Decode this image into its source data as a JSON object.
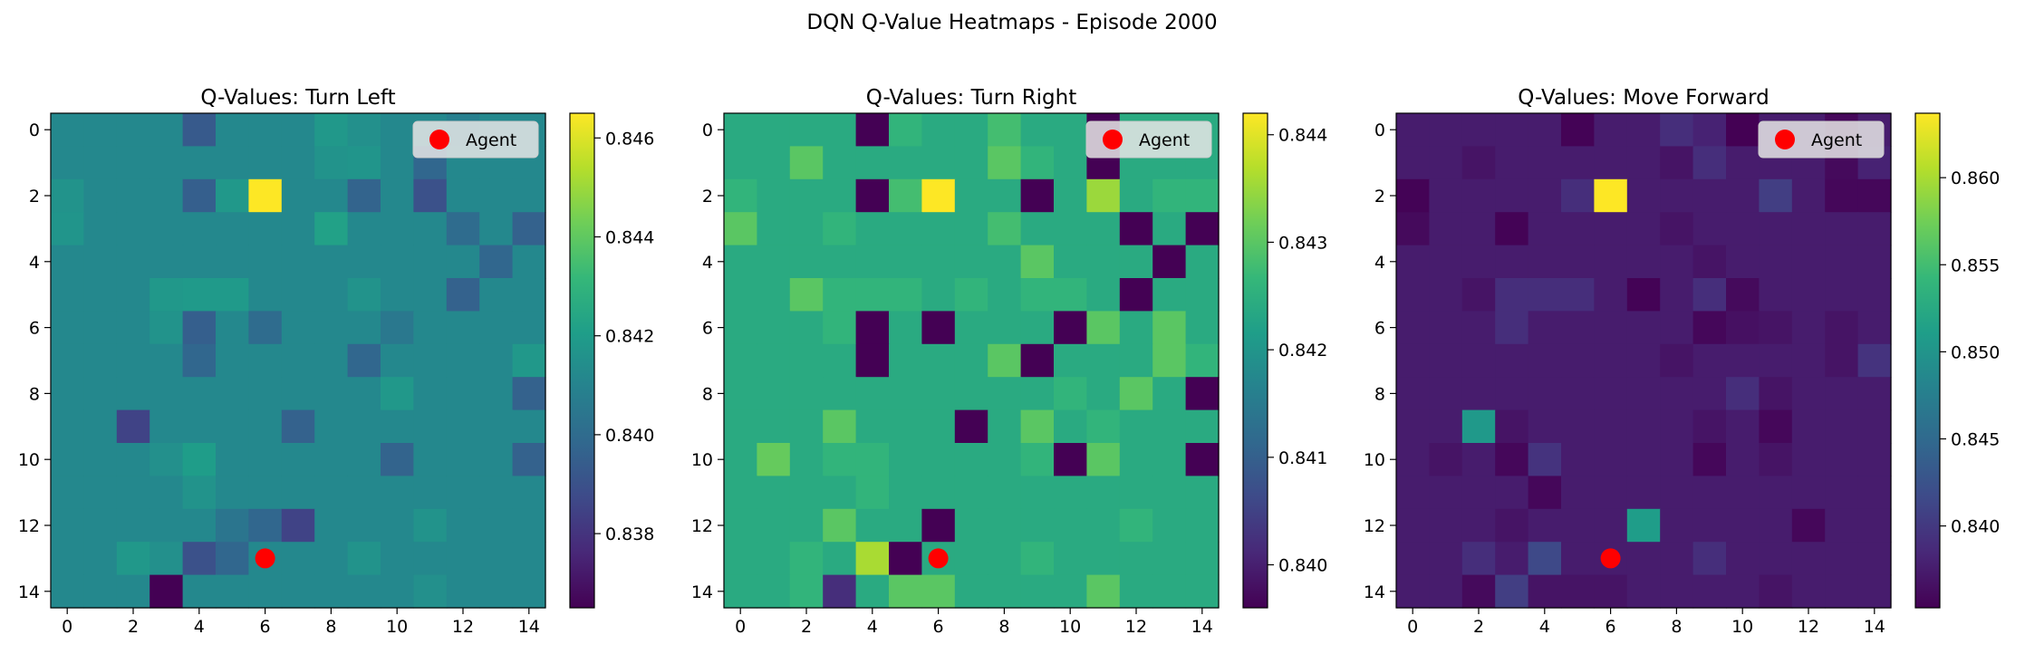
{
  "figure": {
    "suptitle": "DQN Q-Value Heatmaps - Episode 2000"
  },
  "colormap": {
    "name": "viridis",
    "stops": [
      "#440154",
      "#482878",
      "#3e4a89",
      "#31688e",
      "#26828e",
      "#1f9e89",
      "#35b779",
      "#6ece58",
      "#b5de2b",
      "#fde725"
    ]
  },
  "agent_marker": {
    "color": "#ff0000",
    "label": "Agent"
  },
  "legend": {
    "label": "Agent",
    "bg": "#e6e6e6"
  },
  "chart_data": [
    {
      "type": "heatmap",
      "title": "Q-Values: Turn Left",
      "x": [
        0,
        1,
        2,
        3,
        4,
        5,
        6,
        7,
        8,
        9,
        10,
        11,
        12,
        13,
        14
      ],
      "y": [
        0,
        1,
        2,
        3,
        4,
        5,
        6,
        7,
        8,
        9,
        10,
        11,
        12,
        13,
        14
      ],
      "xticks": [
        0,
        2,
        4,
        6,
        8,
        10,
        12,
        14
      ],
      "yticks": [
        0,
        2,
        4,
        6,
        8,
        10,
        12,
        14
      ],
      "vmin": 0.8365,
      "vmax": 0.8465,
      "colorbar_ticks": [
        "0.838",
        "0.840",
        "0.842",
        "0.844",
        "0.846"
      ],
      "colorbar_tick_values": [
        0.838,
        0.84,
        0.842,
        0.844,
        0.846
      ],
      "agent": {
        "x": 6,
        "y": 13
      },
      "legend": "Agent",
      "grid": false,
      "base": 0.8412,
      "cells": [
        [
          0,
          4,
          0.8393
        ],
        [
          0,
          8,
          0.8418
        ],
        [
          0,
          9,
          0.8415
        ],
        [
          0,
          12,
          0.8408
        ],
        [
          1,
          8,
          0.8416
        ],
        [
          1,
          9,
          0.8417
        ],
        [
          1,
          11,
          0.8398
        ],
        [
          2,
          0,
          0.8416
        ],
        [
          2,
          4,
          0.8395
        ],
        [
          2,
          5,
          0.8418
        ],
        [
          2,
          6,
          0.8465
        ],
        [
          2,
          9,
          0.8397
        ],
        [
          2,
          11,
          0.839
        ],
        [
          3,
          0,
          0.8417
        ],
        [
          3,
          8,
          0.8422
        ],
        [
          3,
          12,
          0.84
        ],
        [
          3,
          14,
          0.8396
        ],
        [
          4,
          13,
          0.8398
        ],
        [
          5,
          3,
          0.8418
        ],
        [
          5,
          4,
          0.8419
        ],
        [
          5,
          5,
          0.8419
        ],
        [
          5,
          9,
          0.8416
        ],
        [
          5,
          12,
          0.8396
        ],
        [
          6,
          3,
          0.8416
        ],
        [
          6,
          4,
          0.8395
        ],
        [
          6,
          6,
          0.84
        ],
        [
          6,
          10,
          0.8405
        ],
        [
          7,
          4,
          0.8398
        ],
        [
          7,
          9,
          0.8398
        ],
        [
          7,
          14,
          0.8418
        ],
        [
          8,
          10,
          0.8418
        ],
        [
          8,
          14,
          0.8396
        ],
        [
          9,
          2,
          0.8385
        ],
        [
          9,
          7,
          0.8396
        ],
        [
          10,
          3,
          0.8415
        ],
        [
          10,
          4,
          0.842
        ],
        [
          10,
          10,
          0.8397
        ],
        [
          10,
          14,
          0.8396
        ],
        [
          11,
          4,
          0.8416
        ],
        [
          12,
          5,
          0.8404
        ],
        [
          12,
          6,
          0.8398
        ],
        [
          12,
          7,
          0.8385
        ],
        [
          12,
          11,
          0.8416
        ],
        [
          13,
          2,
          0.8418
        ],
        [
          13,
          3,
          0.8415
        ],
        [
          13,
          4,
          0.839
        ],
        [
          13,
          5,
          0.8398
        ],
        [
          13,
          9,
          0.8416
        ],
        [
          14,
          3,
          0.8365
        ],
        [
          14,
          11,
          0.8415
        ]
      ]
    },
    {
      "type": "heatmap",
      "title": "Q-Values: Turn Right",
      "x": [
        0,
        1,
        2,
        3,
        4,
        5,
        6,
        7,
        8,
        9,
        10,
        11,
        12,
        13,
        14
      ],
      "y": [
        0,
        1,
        2,
        3,
        4,
        5,
        6,
        7,
        8,
        9,
        10,
        11,
        12,
        13,
        14
      ],
      "xticks": [
        0,
        2,
        4,
        6,
        8,
        10,
        12,
        14
      ],
      "yticks": [
        0,
        2,
        4,
        6,
        8,
        10,
        12,
        14
      ],
      "vmin": 0.8396,
      "vmax": 0.8442,
      "colorbar_ticks": [
        "0.840",
        "0.841",
        "0.842",
        "0.843",
        "0.844"
      ],
      "colorbar_tick_values": [
        0.84,
        0.841,
        0.842,
        0.843,
        0.844
      ],
      "agent": {
        "x": 6,
        "y": 13
      },
      "legend": "Agent",
      "grid": false,
      "base": 0.8424,
      "cells": [
        [
          0,
          4,
          0.8396
        ],
        [
          0,
          5,
          0.8426
        ],
        [
          0,
          8,
          0.8428
        ],
        [
          0,
          11,
          0.8396
        ],
        [
          1,
          2,
          0.843
        ],
        [
          1,
          8,
          0.843
        ],
        [
          1,
          9,
          0.8426
        ],
        [
          1,
          11,
          0.8396
        ],
        [
          2,
          0,
          0.8426
        ],
        [
          2,
          4,
          0.8396
        ],
        [
          2,
          5,
          0.8428
        ],
        [
          2,
          6,
          0.8442
        ],
        [
          2,
          9,
          0.8396
        ],
        [
          2,
          11,
          0.8435
        ],
        [
          2,
          13,
          0.8426
        ],
        [
          2,
          14,
          0.8426
        ],
        [
          3,
          0,
          0.843
        ],
        [
          3,
          3,
          0.8426
        ],
        [
          3,
          8,
          0.8428
        ],
        [
          3,
          12,
          0.8396
        ],
        [
          3,
          14,
          0.8396
        ],
        [
          4,
          9,
          0.843
        ],
        [
          4,
          13,
          0.8396
        ],
        [
          5,
          2,
          0.843
        ],
        [
          5,
          3,
          0.8426
        ],
        [
          5,
          4,
          0.8426
        ],
        [
          5,
          5,
          0.8426
        ],
        [
          5,
          7,
          0.8426
        ],
        [
          5,
          9,
          0.8426
        ],
        [
          5,
          10,
          0.8426
        ],
        [
          5,
          12,
          0.8396
        ],
        [
          6,
          3,
          0.8426
        ],
        [
          6,
          4,
          0.8396
        ],
        [
          6,
          6,
          0.8396
        ],
        [
          6,
          10,
          0.8396
        ],
        [
          6,
          11,
          0.843
        ],
        [
          6,
          13,
          0.843
        ],
        [
          7,
          4,
          0.8396
        ],
        [
          7,
          8,
          0.843
        ],
        [
          7,
          9,
          0.8396
        ],
        [
          7,
          13,
          0.843
        ],
        [
          7,
          14,
          0.8426
        ],
        [
          8,
          10,
          0.8426
        ],
        [
          8,
          12,
          0.843
        ],
        [
          8,
          14,
          0.8396
        ],
        [
          9,
          3,
          0.843
        ],
        [
          9,
          7,
          0.8396
        ],
        [
          9,
          9,
          0.843
        ],
        [
          9,
          11,
          0.8426
        ],
        [
          10,
          1,
          0.8431
        ],
        [
          10,
          3,
          0.8426
        ],
        [
          10,
          4,
          0.8426
        ],
        [
          10,
          9,
          0.8426
        ],
        [
          10,
          10,
          0.8396
        ],
        [
          10,
          11,
          0.843
        ],
        [
          10,
          14,
          0.8396
        ],
        [
          11,
          4,
          0.8426
        ],
        [
          12,
          3,
          0.843
        ],
        [
          12,
          6,
          0.8396
        ],
        [
          12,
          12,
          0.8426
        ],
        [
          13,
          2,
          0.8426
        ],
        [
          13,
          4,
          0.8436
        ],
        [
          13,
          5,
          0.8396
        ],
        [
          13,
          9,
          0.8426
        ],
        [
          14,
          2,
          0.8426
        ],
        [
          14,
          3,
          0.8402
        ],
        [
          14,
          5,
          0.843
        ],
        [
          14,
          6,
          0.843
        ],
        [
          14,
          11,
          0.843
        ]
      ]
    },
    {
      "type": "heatmap",
      "title": "Q-Values: Move Forward",
      "x": [
        0,
        1,
        2,
        3,
        4,
        5,
        6,
        7,
        8,
        9,
        10,
        11,
        12,
        13,
        14
      ],
      "y": [
        0,
        1,
        2,
        3,
        4,
        5,
        6,
        7,
        8,
        9,
        10,
        11,
        12,
        13,
        14
      ],
      "xticks": [
        0,
        2,
        4,
        6,
        8,
        10,
        12,
        14
      ],
      "yticks": [
        0,
        2,
        4,
        6,
        8,
        10,
        12,
        14
      ],
      "vmin": 0.8353,
      "vmax": 0.8637,
      "colorbar_ticks": [
        "0.840",
        "0.845",
        "0.850",
        "0.855",
        "0.860"
      ],
      "colorbar_tick_values": [
        0.84,
        0.845,
        0.85,
        0.855,
        0.86
      ],
      "agent": {
        "x": 6,
        "y": 13
      },
      "legend": "Agent",
      "grid": false,
      "base": 0.8375,
      "cells": [
        [
          0,
          5,
          0.8355
        ],
        [
          0,
          8,
          0.839
        ],
        [
          0,
          9,
          0.838
        ],
        [
          0,
          10,
          0.8353
        ],
        [
          0,
          13,
          0.8358
        ],
        [
          1,
          2,
          0.8368
        ],
        [
          1,
          8,
          0.8368
        ],
        [
          1,
          9,
          0.839
        ],
        [
          1,
          13,
          0.836
        ],
        [
          1,
          14,
          0.838
        ],
        [
          2,
          0,
          0.8355
        ],
        [
          2,
          5,
          0.839
        ],
        [
          2,
          6,
          0.8637
        ],
        [
          2,
          11,
          0.8405
        ],
        [
          2,
          13,
          0.8358
        ],
        [
          2,
          14,
          0.8358
        ],
        [
          3,
          0,
          0.836
        ],
        [
          3,
          3,
          0.8355
        ],
        [
          3,
          8,
          0.8368
        ],
        [
          4,
          9,
          0.8368
        ],
        [
          5,
          2,
          0.8368
        ],
        [
          5,
          3,
          0.839
        ],
        [
          5,
          4,
          0.839
        ],
        [
          5,
          5,
          0.839
        ],
        [
          5,
          7,
          0.8355
        ],
        [
          5,
          9,
          0.839
        ],
        [
          5,
          10,
          0.836
        ],
        [
          6,
          3,
          0.839
        ],
        [
          6,
          9,
          0.8358
        ],
        [
          6,
          10,
          0.8365
        ],
        [
          6,
          11,
          0.8368
        ],
        [
          6,
          13,
          0.8368
        ],
        [
          7,
          8,
          0.8368
        ],
        [
          7,
          13,
          0.8368
        ],
        [
          7,
          14,
          0.8395
        ],
        [
          8,
          10,
          0.839
        ],
        [
          8,
          11,
          0.8368
        ],
        [
          9,
          2,
          0.8505
        ],
        [
          9,
          3,
          0.8368
        ],
        [
          9,
          9,
          0.8368
        ],
        [
          9,
          11,
          0.8358
        ],
        [
          10,
          1,
          0.8368
        ],
        [
          10,
          3,
          0.8358
        ],
        [
          10,
          4,
          0.8395
        ],
        [
          10,
          9,
          0.8358
        ],
        [
          10,
          11,
          0.8368
        ],
        [
          11,
          4,
          0.8358
        ],
        [
          12,
          3,
          0.8368
        ],
        [
          12,
          7,
          0.851
        ],
        [
          12,
          12,
          0.8358
        ],
        [
          13,
          2,
          0.839
        ],
        [
          13,
          4,
          0.8415
        ],
        [
          13,
          9,
          0.839
        ],
        [
          14,
          2,
          0.836
        ],
        [
          14,
          3,
          0.8405
        ],
        [
          14,
          4,
          0.8368
        ],
        [
          14,
          5,
          0.8368
        ],
        [
          14,
          6,
          0.8368
        ],
        [
          14,
          11,
          0.8368
        ]
      ]
    }
  ]
}
